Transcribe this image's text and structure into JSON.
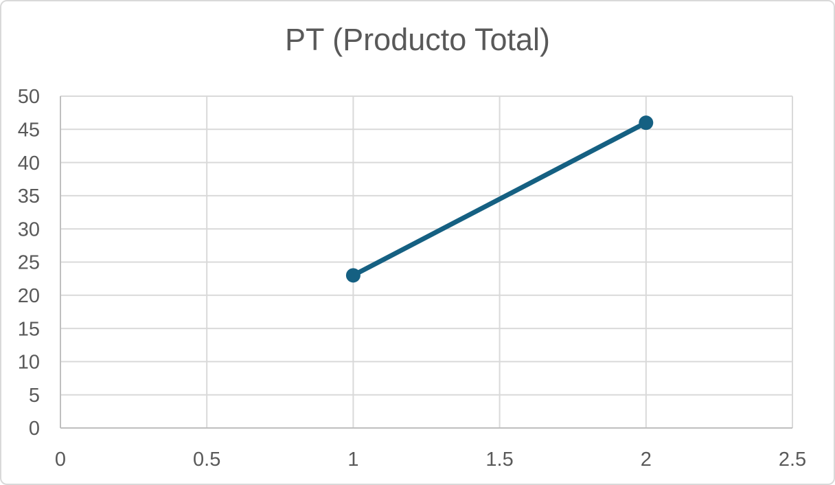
{
  "window": {
    "background": "#FFFFFF",
    "border_color": "#D9D9D9"
  },
  "chart_data": {
    "type": "line",
    "title": "PT (Producto Total)",
    "series": [
      {
        "x": [
          1,
          2
        ],
        "y": [
          23,
          46
        ],
        "color": "#156082",
        "marker": "circle"
      }
    ],
    "xlim": [
      0,
      2.5
    ],
    "ylim": [
      0,
      50
    ],
    "xtick_values": [
      0,
      0.5,
      1,
      1.5,
      2,
      2.5
    ],
    "xtick_labels": [
      "0",
      "0.5",
      "1",
      "1.5",
      "2",
      "2.5"
    ],
    "ytick_values": [
      0,
      5,
      10,
      15,
      20,
      25,
      30,
      35,
      40,
      45,
      50
    ],
    "ytick_labels": [
      "0",
      "5",
      "10",
      "15",
      "20",
      "25",
      "30",
      "35",
      "40",
      "45",
      "50"
    ],
    "grid": true,
    "legend": false,
    "xlabel": "",
    "ylabel": "",
    "styles": {
      "title_color": "#595959",
      "tick_label_color": "#595959",
      "gridline_color": "#D9D9D9",
      "axis_line_color": "#BFBFBF",
      "plot_background": "#FFFFFF"
    }
  }
}
